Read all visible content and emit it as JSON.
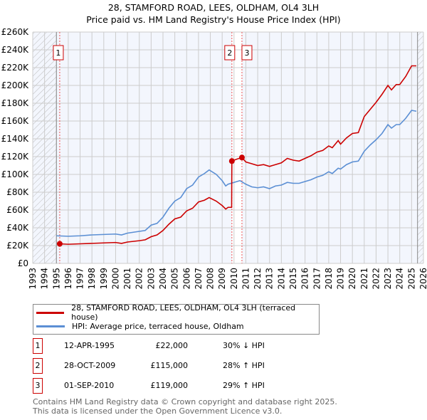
{
  "chart_data": {
    "type": "line",
    "title": "28, STAMFORD ROAD, LEES, OLDHAM, OL4 3LH",
    "subtitle": "Price paid vs. HM Land Registry's House Price Index (HPI)",
    "xlim": [
      1993,
      2026
    ],
    "ylim": [
      0,
      260000
    ],
    "yticks": [
      0,
      20000,
      40000,
      60000,
      80000,
      100000,
      120000,
      140000,
      160000,
      180000,
      200000,
      220000,
      240000,
      260000
    ],
    "ytick_labels": [
      "£0",
      "£20K",
      "£40K",
      "£60K",
      "£80K",
      "£100K",
      "£120K",
      "£140K",
      "£160K",
      "£180K",
      "£200K",
      "£220K",
      "£240K",
      "£260K"
    ],
    "xticks": [
      "1993",
      "1994",
      "1995",
      "1996",
      "1997",
      "1998",
      "1999",
      "2000",
      "2001",
      "2002",
      "2003",
      "2004",
      "2005",
      "2006",
      "2007",
      "2008",
      "2009",
      "2010",
      "2011",
      "2012",
      "2013",
      "2014",
      "2015",
      "2016",
      "2017",
      "2018",
      "2019",
      "2020",
      "2021",
      "2022",
      "2023",
      "2024",
      "2025",
      "2026"
    ],
    "grid": true,
    "series": [
      {
        "name": "28, STAMFORD ROAD, LEES, OLDHAM, OL4 3LH (terraced house)",
        "color": "#cc0000",
        "x": [
          1995.28,
          1996,
          1997,
          1998,
          1999,
          2000,
          2000.5,
          2001,
          2002,
          2002.5,
          2003,
          2003.5,
          2004,
          2004.5,
          2005,
          2005.5,
          2006,
          2006.5,
          2007,
          2007.5,
          2007.9,
          2008.5,
          2009,
          2009.3,
          2009.5,
          2009.8,
          2009.82,
          2010.2,
          2010.67,
          2011,
          2011.5,
          2012,
          2012.5,
          2013,
          2013.5,
          2014,
          2014.5,
          2015,
          2015.5,
          2016,
          2016.5,
          2017,
          2017.5,
          2018,
          2018.3,
          2018.8,
          2019,
          2019.5,
          2020,
          2020.5,
          2021,
          2021.5,
          2022,
          2022.5,
          2023,
          2023.3,
          2023.7,
          2024,
          2024.5,
          2025,
          2025.4
        ],
        "y": [
          22000,
          21500,
          22000,
          22500,
          23000,
          23500,
          22500,
          24000,
          25500,
          26500,
          30000,
          32000,
          37000,
          44000,
          50000,
          52000,
          59000,
          62000,
          69000,
          71000,
          74000,
          70000,
          65000,
          61000,
          63000,
          63000,
          115000,
          117000,
          119000,
          114000,
          112000,
          110000,
          111000,
          109000,
          111000,
          113000,
          118000,
          116000,
          115000,
          118000,
          121000,
          125000,
          127000,
          132000,
          130000,
          138000,
          134000,
          141000,
          146000,
          147000,
          165000,
          173000,
          181000,
          190000,
          200000,
          195000,
          201000,
          201000,
          210000,
          222000,
          222000
        ]
      },
      {
        "name": "HPI: Average price, terraced house, Oldham",
        "color": "#5b8fd4",
        "x": [
          1995,
          1996,
          1997,
          1998,
          1999,
          2000,
          2000.5,
          2001,
          2002,
          2002.5,
          2003,
          2003.5,
          2004,
          2004.5,
          2005,
          2005.5,
          2006,
          2006.5,
          2007,
          2007.5,
          2007.9,
          2008.5,
          2009,
          2009.3,
          2009.5,
          2010,
          2010.5,
          2011,
          2011.5,
          2012,
          2012.5,
          2013,
          2013.5,
          2014,
          2014.5,
          2015,
          2015.5,
          2016,
          2016.5,
          2017,
          2017.5,
          2018,
          2018.3,
          2018.8,
          2019,
          2019.5,
          2020,
          2020.5,
          2021,
          2021.5,
          2022,
          2022.5,
          2023,
          2023.3,
          2023.7,
          2024,
          2024.5,
          2025,
          2025.4
        ],
        "y": [
          31000,
          30500,
          31000,
          32000,
          32500,
          33000,
          32000,
          34000,
          36000,
          37000,
          43000,
          45000,
          52000,
          62000,
          70000,
          74000,
          84000,
          88000,
          97000,
          101000,
          105000,
          100000,
          93000,
          87000,
          89000,
          91000,
          93000,
          89000,
          86000,
          85000,
          86000,
          84000,
          87000,
          88000,
          91000,
          90000,
          90000,
          92000,
          94000,
          97000,
          99000,
          103000,
          101000,
          107000,
          106000,
          111000,
          114000,
          115000,
          126000,
          133000,
          139000,
          146000,
          156000,
          152000,
          156000,
          156000,
          163000,
          172000,
          171000
        ]
      }
    ],
    "transactions": [
      {
        "id": "1",
        "x": 1995.28,
        "y": 22000
      },
      {
        "id": "2",
        "x": 2009.82,
        "y": 115000
      },
      {
        "id": "3",
        "x": 2010.67,
        "y": 119000
      }
    ],
    "legend_placement": "below"
  },
  "legend": {
    "property": "28, STAMFORD ROAD, LEES, OLDHAM, OL4 3LH (terraced house)",
    "hpi": "HPI: Average price, terraced house, Oldham"
  },
  "table": [
    {
      "id": "1",
      "date": "12-APR-1995",
      "price": "£22,000",
      "hpi": "30% ↓ HPI"
    },
    {
      "id": "2",
      "date": "28-OCT-2009",
      "price": "£115,000",
      "hpi": "28% ↑ HPI"
    },
    {
      "id": "3",
      "date": "01-SEP-2010",
      "price": "£119,000",
      "hpi": "29% ↑ HPI"
    }
  ],
  "footer": {
    "line1": "Contains HM Land Registry data © Crown copyright and database right 2025.",
    "line2": "This data is licensed under the Open Government Licence v3.0."
  }
}
